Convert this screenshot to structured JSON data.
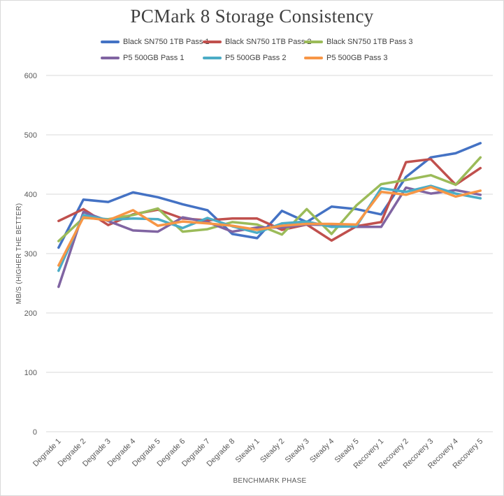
{
  "chart_data": {
    "type": "line",
    "title": "PCMark 8 Storage Consistency",
    "xlabel": "BENCHMARK PHASE",
    "ylabel": "MB/S (HIGHER THE BETTER)",
    "ylim": [
      0,
      600
    ],
    "yticks": [
      0,
      100,
      200,
      300,
      400,
      500,
      600
    ],
    "grid": true,
    "legend_position": "top",
    "categories": [
      "Degrade 1",
      "Degrade 2",
      "Degrade 3",
      "Degrade 4",
      "Degrade 5",
      "Degrade 6",
      "Degrade 7",
      "Degrade 8",
      "Steady 1",
      "Steady 2",
      "Steady 3",
      "Steady 4",
      "Steady 5",
      "Recovery 1",
      "Recovery 2",
      "Recovery 3",
      "Recovery 4",
      "Recovery 5"
    ],
    "series": [
      {
        "name": "Black SN750 1TB Pass 1",
        "color": "#4472c4",
        "values": [
          310,
          391,
          387,
          403,
          395,
          383,
          373,
          333,
          326,
          372,
          353,
          379,
          375,
          366,
          429,
          462,
          469,
          486
        ]
      },
      {
        "name": "Black SN750 1TB Pass 2",
        "color": "#c0504d",
        "values": [
          355,
          375,
          348,
          366,
          374,
          359,
          356,
          359,
          359,
          340,
          349,
          322,
          346,
          353,
          454,
          459,
          416,
          444
        ]
      },
      {
        "name": "Black SN750 1TB Pass 3",
        "color": "#9bbb59",
        "values": [
          321,
          360,
          358,
          365,
          376,
          337,
          341,
          353,
          349,
          332,
          375,
          333,
          381,
          417,
          424,
          432,
          416,
          462
        ]
      },
      {
        "name": "P5 500GB Pass 1",
        "color": "#8064a2",
        "values": [
          244,
          370,
          355,
          339,
          337,
          361,
          353,
          337,
          344,
          344,
          349,
          348,
          345,
          345,
          411,
          401,
          407,
          399
        ]
      },
      {
        "name": "P5 500GB Pass 2",
        "color": "#4bacc6",
        "values": [
          271,
          365,
          357,
          359,
          358,
          343,
          360,
          346,
          335,
          351,
          354,
          345,
          346,
          410,
          404,
          414,
          401,
          393
        ]
      },
      {
        "name": "P5 500GB Pass 3",
        "color": "#f79646",
        "values": [
          280,
          361,
          356,
          373,
          347,
          354,
          351,
          347,
          340,
          347,
          350,
          350,
          349,
          404,
          399,
          412,
          396,
          406
        ]
      }
    ]
  }
}
